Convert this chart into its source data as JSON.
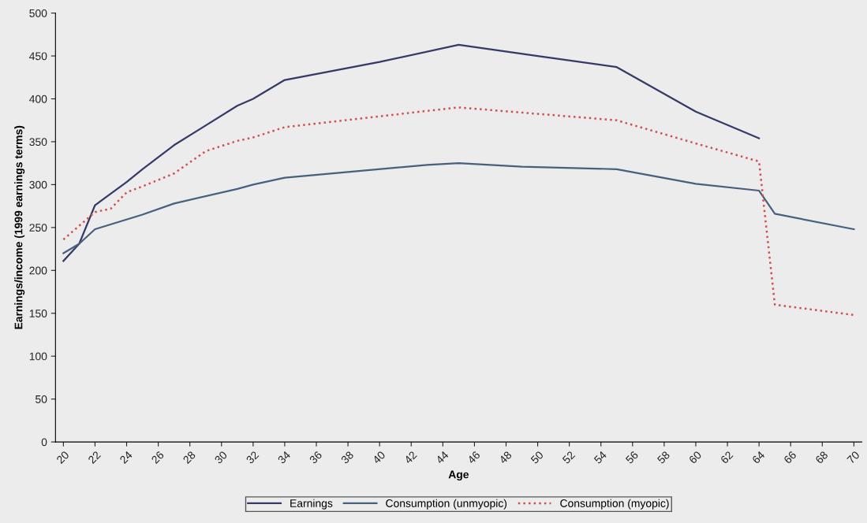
{
  "chart_data": {
    "type": "line",
    "xlabel": "Age",
    "ylabel": "Earnings/income (1999 earnings terms)",
    "xlim": [
      19.5,
      70.5
    ],
    "xticks": [
      20,
      22,
      24,
      26,
      28,
      30,
      32,
      34,
      36,
      38,
      40,
      42,
      44,
      46,
      48,
      50,
      52,
      54,
      56,
      58,
      60,
      62,
      64,
      66,
      68,
      70
    ],
    "ylim": [
      0,
      500
    ],
    "yticks": [
      0,
      50,
      100,
      150,
      200,
      250,
      300,
      350,
      400,
      450,
      500
    ],
    "grid": false,
    "legend": "bottom",
    "series": [
      {
        "name": "Earnings",
        "color": "#353a66",
        "line_style": "solid",
        "x": [
          20,
          21,
          22,
          24,
          25,
          27,
          31,
          32,
          34,
          40,
          45,
          50,
          55,
          60,
          64
        ],
        "values": [
          211,
          231,
          276,
          303,
          318,
          346,
          392,
          400,
          422,
          443,
          463,
          450,
          437,
          385,
          354
        ]
      },
      {
        "name": "Consumption (unmyopic)",
        "color": "#46607e",
        "line_style": "solid",
        "x": [
          20,
          21,
          22,
          25,
          27,
          31,
          32,
          34,
          43,
          45,
          49,
          55,
          60,
          64,
          65,
          70
        ],
        "values": [
          220,
          231,
          248,
          265,
          278,
          295,
          300,
          308,
          323,
          325,
          321,
          318,
          301,
          293,
          266,
          248
        ]
      },
      {
        "name": "Consumption (myopic)",
        "color": "#d05050",
        "line_style": "dotted",
        "x": [
          20,
          22,
          23,
          24,
          25,
          27,
          29,
          31,
          32,
          34,
          43,
          45,
          55,
          60,
          64,
          65,
          70
        ],
        "values": [
          236,
          268,
          272,
          291,
          298,
          313,
          339,
          351,
          355,
          367,
          386,
          390,
          375,
          348,
          327,
          160,
          148
        ]
      }
    ]
  }
}
